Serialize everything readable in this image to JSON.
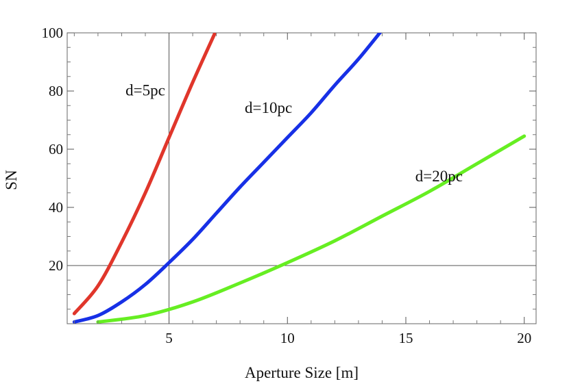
{
  "chart_data": {
    "type": "line",
    "title": "",
    "xlabel": "Aperture Size [m]",
    "ylabel": "SN",
    "xlim": [
      0.7,
      20.5
    ],
    "ylim": [
      0,
      100
    ],
    "xticks": [
      5,
      10,
      15,
      20
    ],
    "yticks": [
      20,
      40,
      60,
      80,
      100
    ],
    "xtick_labels": [
      "5",
      "10",
      "15",
      "20"
    ],
    "ytick_labels": [
      "20",
      "40",
      "60",
      "80",
      "100"
    ],
    "grid": false,
    "legend": "none",
    "reference_lines": [
      {
        "orientation": "vertical",
        "value": 5
      },
      {
        "orientation": "horizontal",
        "value": 20
      }
    ],
    "series": [
      {
        "label": "d=5pc",
        "color": "#e0362b",
        "x": [
          1,
          2,
          3,
          4,
          5,
          6,
          7
        ],
        "y": [
          3.5,
          13,
          28,
          45,
          64,
          83,
          101
        ]
      },
      {
        "label": "d=10pc",
        "color": "#1730e6",
        "x": [
          1,
          2,
          3,
          4,
          5,
          6,
          7,
          8,
          9,
          10,
          11,
          12,
          13,
          14
        ],
        "y": [
          0.6,
          2.8,
          7.5,
          13.5,
          21,
          29,
          38,
          47,
          55.5,
          64,
          72.5,
          82,
          91,
          101
        ]
      },
      {
        "label": "d=20pc",
        "color": "#66ee22",
        "x": [
          2,
          4,
          6,
          8,
          10,
          12,
          14,
          16,
          18,
          20
        ],
        "y": [
          0.6,
          2.8,
          7.5,
          14,
          21,
          28.5,
          37,
          45.5,
          55,
          64.5
        ]
      }
    ],
    "annotations": [
      {
        "text": "d=5pc",
        "x": 4.0,
        "y": 78.5
      },
      {
        "text": "d=10pc",
        "x": 9.2,
        "y": 72.5
      },
      {
        "text": "d=20pc",
        "x": 16.4,
        "y": 49
      }
    ]
  }
}
